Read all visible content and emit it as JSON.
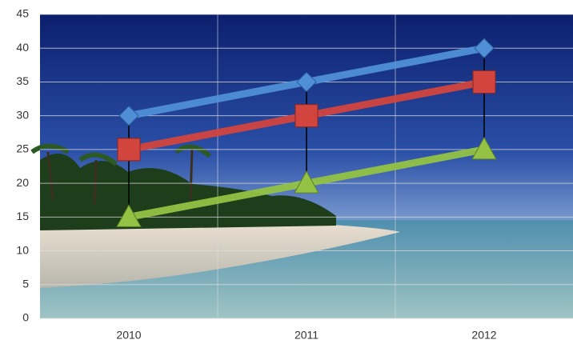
{
  "chart_data": {
    "type": "line",
    "categories": [
      "2010",
      "2011",
      "2012"
    ],
    "series": [
      {
        "color": "#4f8fd6",
        "marker": "diamond",
        "values": [
          30,
          35,
          40
        ]
      },
      {
        "color": "#d2453f",
        "marker": "square",
        "values": [
          25,
          30,
          35
        ]
      },
      {
        "color": "#93c244",
        "marker": "triangle",
        "values": [
          15,
          20,
          25
        ]
      }
    ],
    "ylim": [
      0,
      45
    ],
    "yticks": [
      0,
      5,
      10,
      15,
      20,
      25,
      30,
      35,
      40,
      45
    ],
    "grid": true,
    "high_low_lines": true
  }
}
